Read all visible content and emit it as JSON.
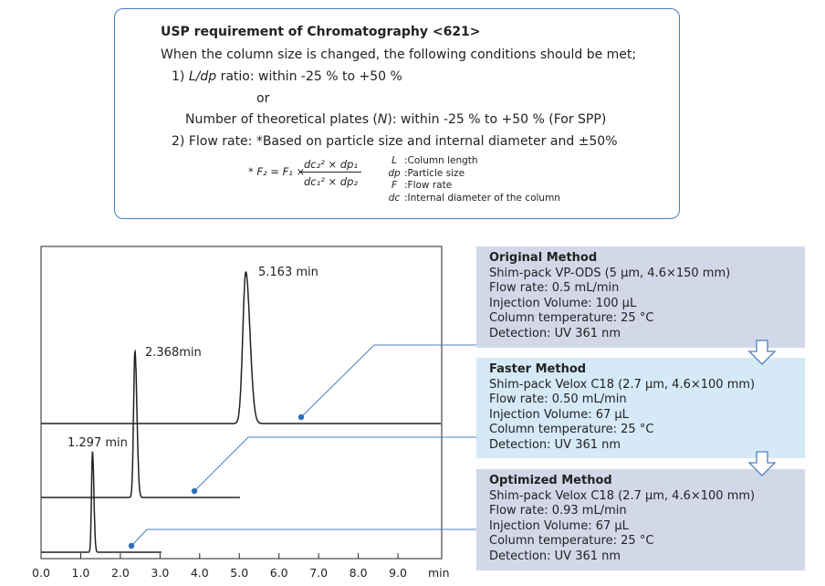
{
  "requirement": {
    "title": "USP requirement of Chromatography <621>",
    "intro": "When the column size is changed, the following conditions should be met;",
    "item1_prefix": "1) ",
    "item1_italic": "L/dp",
    "item1_rest": " ratio: within -25 % to +50 %",
    "or": "or",
    "item1b_prefix": "Number of theoretical plates (",
    "item1b_italic": "N",
    "item1b_rest": "): within -25 % to +50 % (For SPP)",
    "item2": "2) Flow rate: *Based on particle size and internal diameter and ±50%",
    "formula_lhs": "* F₂ = F₁ ×",
    "formula_num": "dc₂² × dp₁",
    "formula_den": "dc₁² × dp₂",
    "legend": [
      {
        "sym": "L",
        "desc": ":Column length"
      },
      {
        "sym": "dp",
        "desc": ":Particle size"
      },
      {
        "sym": "F",
        "desc": ":Flow rate"
      },
      {
        "sym": "dc",
        "desc": ":Internal diameter of the column"
      }
    ]
  },
  "methods": [
    {
      "title": "Original Method",
      "lines": [
        "Shim-pack VP-ODS (5 µm, 4.6×150 mm)",
        "Flow rate: 0.5 mL/min",
        "Injection Volume: 100 µL",
        "Column temperature: 25 °C",
        "Detection: UV 361 nm"
      ],
      "color": "#d3d8e9"
    },
    {
      "title": "Faster Method",
      "lines": [
        "Shim-pack Velox C18 (2.7 µm, 4.6×100 mm)",
        "Flow rate: 0.50 mL/min",
        "Injection Volume: 67 µL",
        "Column temperature: 25 °C",
        "Detection: UV 361 nm"
      ],
      "color": "#d5e9f7"
    },
    {
      "title": "Optimized Method",
      "lines": [
        "Shim-pack Velox C18 (2.7 µm, 4.6×100 mm)",
        "Flow rate: 0.93 mL/min",
        "Injection Volume: 67 µL",
        "Column temperature: 25 °C",
        "Detection: UV 361 nm"
      ],
      "color": "#d3d8e9"
    }
  ],
  "chart_data": {
    "type": "line",
    "xlabel": "min",
    "xlim": [
      0,
      10
    ],
    "xticks": [
      "0.0",
      "1.0",
      "2.0",
      "3.0",
      "4.0",
      "5.0",
      "6.0",
      "7.0",
      "8.0",
      "9.0"
    ],
    "series": [
      {
        "name": "Original Method",
        "peak_time": 5.163,
        "label": "5.163 min",
        "run_end": 10,
        "peak_width": 0.075
      },
      {
        "name": "Faster Method",
        "peak_time": 2.368,
        "label": "2.368min",
        "run_end": 5,
        "peak_width": 0.035
      },
      {
        "name": "Optimized Method",
        "peak_time": 1.297,
        "label": "1.297 min",
        "run_end": 3,
        "peak_width": 0.025
      }
    ],
    "line_color": "#222222",
    "callout_color": "#4a7fc0"
  }
}
